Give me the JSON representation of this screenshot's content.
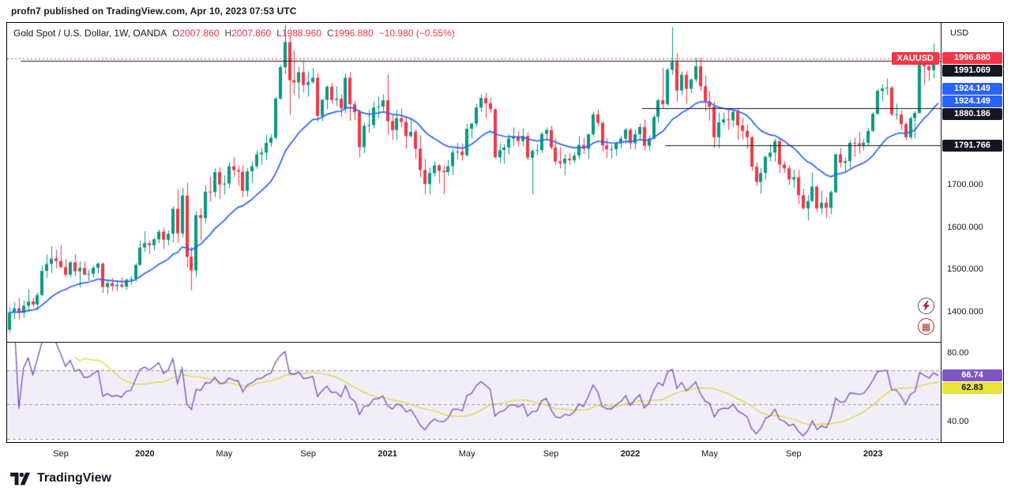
{
  "attribution": "profn7 published on TradingView.com, Apr 10, 2023 07:53 UTC",
  "legend": {
    "symbol": "Gold Spot / U.S. Dollar, 1W, OANDA",
    "o_label": "O",
    "o": "2007.860",
    "h_label": "H",
    "h": "2007.860",
    "l_label": "L",
    "l": "1988.960",
    "c_label": "C",
    "c": "1996.880",
    "change": "−10.980 (−0.55%)"
  },
  "price_axis": {
    "currency": "USD",
    "ticks": [
      {
        "label": "1700.000",
        "price": 1700
      },
      {
        "label": "1600.000",
        "price": 1600
      },
      {
        "label": "1500.000",
        "price": 1500
      },
      {
        "label": "1400.000",
        "price": 1400
      }
    ],
    "badges": [
      {
        "text": "1996.880",
        "color": "#f23645",
        "price": 1996.88,
        "type": "last-price"
      },
      {
        "text": "1991.069",
        "color": "#131722",
        "price": 1991.069,
        "type": "drawn-line"
      },
      {
        "text": "1924.149",
        "color": "#2962ff",
        "price": 1924.149,
        "type": "ma"
      },
      {
        "text": "1924.149",
        "color": "#2962ff",
        "price": 1924.149,
        "type": "ma"
      },
      {
        "text": "1880.186",
        "color": "#131722",
        "price": 1880.186,
        "type": "drawn-line"
      },
      {
        "text": "1791.766",
        "color": "#131722",
        "price": 1791.766,
        "type": "drawn-line"
      }
    ],
    "symbol_badge": {
      "text": "XAUUSD",
      "color": "#f23645"
    }
  },
  "rsi_axis": {
    "ticks": [
      {
        "label": "80.00",
        "value": 80
      },
      {
        "label": "40.00",
        "value": 40
      }
    ],
    "badges": [
      {
        "text": "66.74",
        "color": "#7e57c2",
        "value": 66.74
      },
      {
        "text": "62.83",
        "color": "#e8e33c",
        "value": 62.83,
        "dark_text": true
      }
    ]
  },
  "time_axis": {
    "labels": [
      {
        "text": "Sep",
        "index": 11
      },
      {
        "text": "2020",
        "index": 29,
        "year": true
      },
      {
        "text": "May",
        "index": 46
      },
      {
        "text": "Sep",
        "index": 64
      },
      {
        "text": "2021",
        "index": 81,
        "year": true
      },
      {
        "text": "May",
        "index": 98
      },
      {
        "text": "Sep",
        "index": 116
      },
      {
        "text": "2022",
        "index": 133,
        "year": true
      },
      {
        "text": "May",
        "index": 150
      },
      {
        "text": "Sep",
        "index": 168
      },
      {
        "text": "2023",
        "index": 185,
        "year": true
      }
    ]
  },
  "footer": {
    "brand": "TradingView"
  },
  "chart_data": {
    "type": "candlestick",
    "title": "Gold Spot / U.S. Dollar",
    "symbol": "XAUUSD",
    "timeframe": "1W",
    "exchange": "OANDA",
    "ylim": [
      1330,
      2080
    ],
    "colors": {
      "up": "#089981",
      "down": "#f23645"
    },
    "candles": [
      [
        1358,
        1412,
        1351,
        1399
      ],
      [
        1399,
        1423,
        1384,
        1409
      ],
      [
        1409,
        1433,
        1382,
        1398
      ],
      [
        1398,
        1427,
        1387,
        1415
      ],
      [
        1415,
        1454,
        1400,
        1425
      ],
      [
        1425,
        1434,
        1411,
        1418
      ],
      [
        1418,
        1446,
        1404,
        1440
      ],
      [
        1440,
        1510,
        1437,
        1497
      ],
      [
        1497,
        1535,
        1480,
        1513
      ],
      [
        1513,
        1555,
        1492,
        1526
      ],
      [
        1526,
        1546,
        1503,
        1520
      ],
      [
        1520,
        1557,
        1502,
        1506
      ],
      [
        1506,
        1524,
        1483,
        1488
      ],
      [
        1488,
        1520,
        1481,
        1517
      ],
      [
        1517,
        1536,
        1485,
        1496
      ],
      [
        1496,
        1519,
        1458,
        1504
      ],
      [
        1504,
        1519,
        1486,
        1488
      ],
      [
        1488,
        1500,
        1474,
        1490
      ],
      [
        1490,
        1510,
        1481,
        1504
      ],
      [
        1504,
        1518,
        1490,
        1514
      ],
      [
        1514,
        1517,
        1445,
        1459
      ],
      [
        1459,
        1475,
        1443,
        1468
      ],
      [
        1468,
        1480,
        1450,
        1461
      ],
      [
        1461,
        1472,
        1449,
        1464
      ],
      [
        1464,
        1481,
        1456,
        1460
      ],
      [
        1460,
        1479,
        1452,
        1476
      ],
      [
        1476,
        1485,
        1465,
        1478
      ],
      [
        1478,
        1515,
        1472,
        1511
      ],
      [
        1511,
        1568,
        1508,
        1552
      ],
      [
        1552,
        1590,
        1541,
        1562
      ],
      [
        1562,
        1568,
        1536,
        1557
      ],
      [
        1557,
        1575,
        1545,
        1571
      ],
      [
        1571,
        1594,
        1562,
        1589
      ],
      [
        1589,
        1598,
        1548,
        1570
      ],
      [
        1570,
        1592,
        1557,
        1584
      ],
      [
        1584,
        1649,
        1564,
        1643
      ],
      [
        1643,
        1689,
        1563,
        1585
      ],
      [
        1585,
        1692,
        1576,
        1674
      ],
      [
        1674,
        1704,
        1504,
        1530
      ],
      [
        1530,
        1553,
        1451,
        1498
      ],
      [
        1498,
        1637,
        1482,
        1628
      ],
      [
        1628,
        1644,
        1568,
        1621
      ],
      [
        1621,
        1698,
        1609,
        1683
      ],
      [
        1683,
        1718,
        1660,
        1682
      ],
      [
        1682,
        1738,
        1670,
        1729
      ],
      [
        1729,
        1740,
        1666,
        1700
      ],
      [
        1700,
        1722,
        1676,
        1702
      ],
      [
        1702,
        1751,
        1691,
        1743
      ],
      [
        1743,
        1765,
        1717,
        1734
      ],
      [
        1734,
        1744,
        1697,
        1730
      ],
      [
        1730,
        1746,
        1670,
        1685
      ],
      [
        1685,
        1739,
        1671,
        1731
      ],
      [
        1731,
        1754,
        1704,
        1743
      ],
      [
        1743,
        1780,
        1737,
        1771
      ],
      [
        1771,
        1786,
        1747,
        1775
      ],
      [
        1775,
        1818,
        1757,
        1798
      ],
      [
        1798,
        1818,
        1789,
        1810
      ],
      [
        1810,
        1906,
        1806,
        1902
      ],
      [
        1902,
        1981,
        1900,
        1976
      ],
      [
        1976,
        2075,
        1960,
        2035
      ],
      [
        2035,
        2050,
        1863,
        1945
      ],
      [
        1945,
        2015,
        1911,
        1940
      ],
      [
        1940,
        1976,
        1902,
        1964
      ],
      [
        1964,
        1992,
        1916,
        1934
      ],
      [
        1934,
        1966,
        1906,
        1941
      ],
      [
        1941,
        1974,
        1937,
        1951
      ],
      [
        1951,
        1962,
        1848,
        1861
      ],
      [
        1861,
        1901,
        1849,
        1899
      ],
      [
        1899,
        1933,
        1877,
        1930
      ],
      [
        1930,
        1939,
        1890,
        1899
      ],
      [
        1899,
        1931,
        1885,
        1902
      ],
      [
        1902,
        1912,
        1859,
        1879
      ],
      [
        1879,
        1962,
        1867,
        1951
      ],
      [
        1951,
        1965,
        1850,
        1889
      ],
      [
        1889,
        1897,
        1851,
        1870
      ],
      [
        1870,
        1876,
        1764,
        1788
      ],
      [
        1788,
        1844,
        1774,
        1838
      ],
      [
        1838,
        1875,
        1822,
        1840
      ],
      [
        1840,
        1896,
        1832,
        1881
      ],
      [
        1881,
        1906,
        1855,
        1883
      ],
      [
        1883,
        1912,
        1873,
        1898
      ],
      [
        1898,
        1959,
        1817,
        1849
      ],
      [
        1849,
        1863,
        1804,
        1828
      ],
      [
        1828,
        1875,
        1804,
        1856
      ],
      [
        1856,
        1878,
        1835,
        1847
      ],
      [
        1847,
        1861,
        1784,
        1814
      ],
      [
        1814,
        1855,
        1810,
        1824
      ],
      [
        1824,
        1830,
        1760,
        1784
      ],
      [
        1784,
        1816,
        1717,
        1734
      ],
      [
        1734,
        1760,
        1677,
        1701
      ],
      [
        1701,
        1740,
        1676,
        1727
      ],
      [
        1727,
        1755,
        1719,
        1745
      ],
      [
        1745,
        1748,
        1702,
        1732
      ],
      [
        1732,
        1745,
        1677,
        1729
      ],
      [
        1729,
        1758,
        1721,
        1743
      ],
      [
        1743,
        1784,
        1723,
        1776
      ],
      [
        1776,
        1798,
        1760,
        1777
      ],
      [
        1777,
        1797,
        1756,
        1769
      ],
      [
        1769,
        1843,
        1765,
        1831
      ],
      [
        1831,
        1845,
        1808,
        1843
      ],
      [
        1843,
        1890,
        1836,
        1881
      ],
      [
        1881,
        1912,
        1872,
        1903
      ],
      [
        1903,
        1916,
        1856,
        1891
      ],
      [
        1891,
        1903,
        1869,
        1877
      ],
      [
        1877,
        1879,
        1761,
        1764
      ],
      [
        1764,
        1797,
        1750,
        1781
      ],
      [
        1781,
        1795,
        1749,
        1787
      ],
      [
        1787,
        1818,
        1770,
        1808
      ],
      [
        1808,
        1834,
        1791,
        1812
      ],
      [
        1812,
        1825,
        1789,
        1802
      ],
      [
        1802,
        1832,
        1790,
        1814
      ],
      [
        1814,
        1823,
        1757,
        1763
      ],
      [
        1763,
        1784,
        1677,
        1779
      ],
      [
        1779,
        1795,
        1768,
        1781
      ],
      [
        1781,
        1823,
        1774,
        1819
      ],
      [
        1819,
        1834,
        1804,
        1828
      ],
      [
        1828,
        1838,
        1782,
        1787
      ],
      [
        1787,
        1808,
        1745,
        1754
      ],
      [
        1754,
        1788,
        1738,
        1750
      ],
      [
        1750,
        1771,
        1722,
        1761
      ],
      [
        1761,
        1774,
        1746,
        1757
      ],
      [
        1757,
        1777,
        1750,
        1768
      ],
      [
        1768,
        1814,
        1760,
        1793
      ],
      [
        1793,
        1810,
        1772,
        1784
      ],
      [
        1784,
        1820,
        1759,
        1818
      ],
      [
        1818,
        1871,
        1812,
        1865
      ],
      [
        1865,
        1877,
        1836,
        1845
      ],
      [
        1845,
        1849,
        1778,
        1792
      ],
      [
        1792,
        1808,
        1762,
        1783
      ],
      [
        1783,
        1793,
        1761,
        1783
      ],
      [
        1783,
        1800,
        1767,
        1798
      ],
      [
        1798,
        1815,
        1785,
        1808
      ],
      [
        1808,
        1832,
        1795,
        1829
      ],
      [
        1829,
        1833,
        1783,
        1797
      ],
      [
        1797,
        1829,
        1782,
        1818
      ],
      [
        1818,
        1843,
        1805,
        1835
      ],
      [
        1835,
        1853,
        1780,
        1791
      ],
      [
        1791,
        1815,
        1779,
        1808
      ],
      [
        1808,
        1865,
        1806,
        1859
      ],
      [
        1859,
        1902,
        1845,
        1898
      ],
      [
        1898,
        1974,
        1878,
        1889
      ],
      [
        1889,
        1974,
        1884,
        1970
      ],
      [
        1970,
        2070,
        1958,
        1988
      ],
      [
        1988,
        2009,
        1895,
        1921
      ],
      [
        1921,
        1966,
        1910,
        1958
      ],
      [
        1958,
        1967,
        1890,
        1925
      ],
      [
        1925,
        1950,
        1915,
        1947
      ],
      [
        1947,
        1998,
        1940,
        1978
      ],
      [
        1978,
        1998,
        1919,
        1931
      ],
      [
        1931,
        1957,
        1872,
        1896
      ],
      [
        1896,
        1920,
        1850,
        1883
      ],
      [
        1883,
        1895,
        1786,
        1811
      ],
      [
        1811,
        1869,
        1785,
        1846
      ],
      [
        1846,
        1869,
        1840,
        1853
      ],
      [
        1853,
        1874,
        1828,
        1851
      ],
      [
        1851,
        1879,
        1836,
        1871
      ],
      [
        1871,
        1880,
        1805,
        1839
      ],
      [
        1839,
        1857,
        1805,
        1826
      ],
      [
        1826,
        1842,
        1784,
        1811
      ],
      [
        1811,
        1814,
        1732,
        1742
      ],
      [
        1742,
        1752,
        1697,
        1706
      ],
      [
        1706,
        1739,
        1678,
        1727
      ],
      [
        1727,
        1768,
        1711,
        1765
      ],
      [
        1765,
        1794,
        1754,
        1775
      ],
      [
        1775,
        1807,
        1754,
        1802
      ],
      [
        1802,
        1808,
        1727,
        1747
      ],
      [
        1747,
        1755,
        1728,
        1738
      ],
      [
        1738,
        1745,
        1699,
        1712
      ],
      [
        1712,
        1735,
        1691,
        1717
      ],
      [
        1717,
        1735,
        1654,
        1675
      ],
      [
        1675,
        1690,
        1641,
        1644
      ],
      [
        1644,
        1675,
        1615,
        1661
      ],
      [
        1661,
        1729,
        1659,
        1695
      ],
      [
        1695,
        1699,
        1636,
        1644
      ],
      [
        1644,
        1686,
        1631,
        1657
      ],
      [
        1657,
        1670,
        1621,
        1645
      ],
      [
        1645,
        1686,
        1630,
        1682
      ],
      [
        1682,
        1772,
        1680,
        1771
      ],
      [
        1771,
        1786,
        1740,
        1751
      ],
      [
        1751,
        1763,
        1727,
        1755
      ],
      [
        1755,
        1804,
        1739,
        1798
      ],
      [
        1798,
        1810,
        1765,
        1797
      ],
      [
        1797,
        1824,
        1773,
        1793
      ],
      [
        1793,
        1807,
        1780,
        1798
      ],
      [
        1798,
        1833,
        1791,
        1826
      ],
      [
        1826,
        1870,
        1823,
        1866
      ],
      [
        1866,
        1925,
        1864,
        1920
      ],
      [
        1920,
        1935,
        1896,
        1926
      ],
      [
        1926,
        1949,
        1911,
        1928
      ],
      [
        1928,
        1932,
        1860,
        1865
      ],
      [
        1865,
        1890,
        1852,
        1865
      ],
      [
        1865,
        1875,
        1828,
        1842
      ],
      [
        1842,
        1847,
        1804,
        1811
      ],
      [
        1811,
        1860,
        1806,
        1856
      ],
      [
        1856,
        1872,
        1809,
        1868
      ],
      [
        1868,
        1993,
        1867,
        1989
      ],
      [
        1989,
        2010,
        1934,
        1978
      ],
      [
        1978,
        1984,
        1944,
        1969
      ],
      [
        1969,
        2032,
        1949,
        2007
      ],
      [
        2007.86,
        2007.86,
        1988.96,
        1996.88
      ]
    ],
    "overlays": [
      {
        "name": "EMA",
        "period": 20,
        "color": "#2962ff",
        "last_value": 1924.149
      }
    ],
    "h_lines": [
      {
        "price": 1991.069,
        "from_index": 3
      },
      {
        "price": 1880.186,
        "from_index": 136
      },
      {
        "price": 1791.766,
        "from_index": 141
      }
    ],
    "last_price_line": {
      "price": 1996.88,
      "color": "#f23645",
      "style": "dotted"
    },
    "rsi": {
      "type": "line",
      "period": 14,
      "ma_period": 14,
      "line_color": "#7e57c2",
      "ma_color": "#e0d944",
      "ylim": [
        28,
        86
      ],
      "bands": [
        70,
        50,
        30
      ],
      "band_fill": "rgba(126,87,194,0.10)",
      "last": 66.74,
      "ma_last": 62.83
    }
  }
}
